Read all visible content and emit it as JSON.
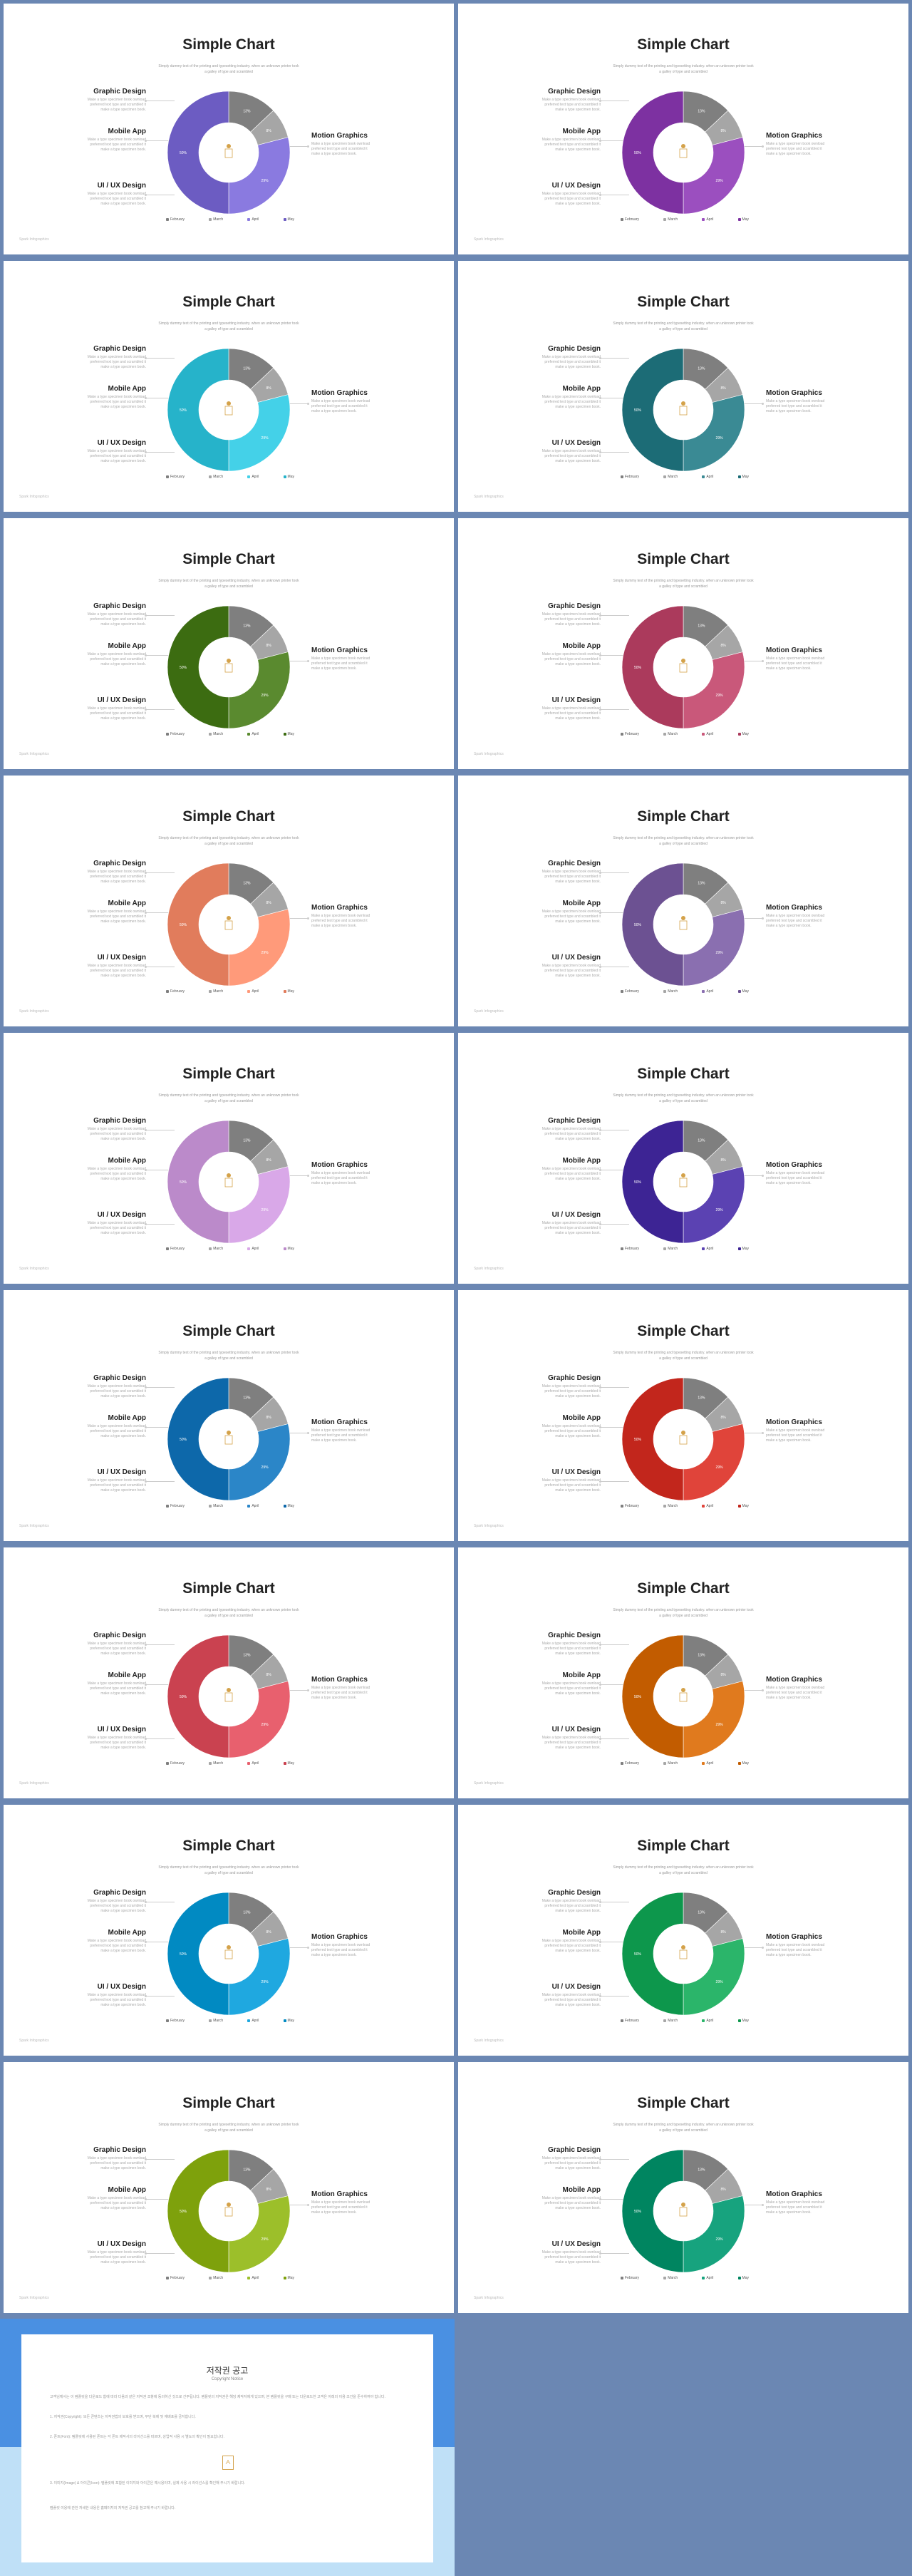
{
  "slide": {
    "title": "Simple Chart",
    "subtitle": "Simply dummy text of the printing and typesetting industry. when an unknown printer took a galley of type and scrambled",
    "labels": [
      "Graphic Design",
      "Mobile App",
      "UI / UX Design",
      "Motion Graphics"
    ],
    "desc": "Make a type specimen book ownload preferred text type and scrambled it make a type specimen book.",
    "footer": "Spark Infographics"
  },
  "colors": {
    "gray": "#a6a6a6",
    "dark_gray": "#7f7f7f",
    "slides": [
      "#8a7ae0",
      "#9b4fbf",
      "#44d1e8",
      "#3a8a94",
      "#5a8a2f",
      "#c9587a",
      "#ff9a7a",
      "#8a6fb0",
      "#d9a8e8",
      "#5b42b2",
      "#2b86c8",
      "#e0443a",
      "#e8606e",
      "#e07a1e",
      "#1fa8e0",
      "#2bb56a",
      "#9cbf2a",
      "#17a37e"
    ]
  },
  "chart_data": {
    "type": "pie",
    "categories": [
      "February",
      "March",
      "April",
      "May"
    ],
    "values": [
      13,
      8,
      29,
      50
    ],
    "value_labels": [
      "13%",
      "8%",
      "29%",
      "50%"
    ],
    "legend_position": "bottom"
  },
  "copyright": {
    "title": "저작권 공고",
    "subtitle": "Copyright Notice",
    "p1": "고객님께서는 이 템플릿을 다운로드 함에 따라 다음과 같은 저작권 조항에 동의하신 것으로 간주됩니다. 템플릿의 저작권은 해당 제작자에게 있으며, 본 템플릿을 구매 또는 다운로드한 고객은 아래의 이용 조건을 준수하여야 합니다.",
    "p2": "1. 저작권(Copyright): 모든 콘텐츠는 저작권법의 보호를 받으며, 무단 복제 및 재배포를 금지합니다.",
    "p3": "2. 폰트(Font): 템플릿에 사용된 폰트는 각 폰트 제작사의 라이선스를 따르며, 상업적 사용 시 별도의 확인이 필요합니다.",
    "p4": "3. 이미지(Image) & 아이콘(Icon): 템플릿에 포함된 이미지와 아이콘은 예시용이며, 실제 사용 시 라이선스를 확인해 주시기 바랍니다.",
    "p5": "템플릿 이용에 관한 자세한 내용은 홈페이지의 저작권 공고를 참고해 주시기 바랍니다."
  }
}
